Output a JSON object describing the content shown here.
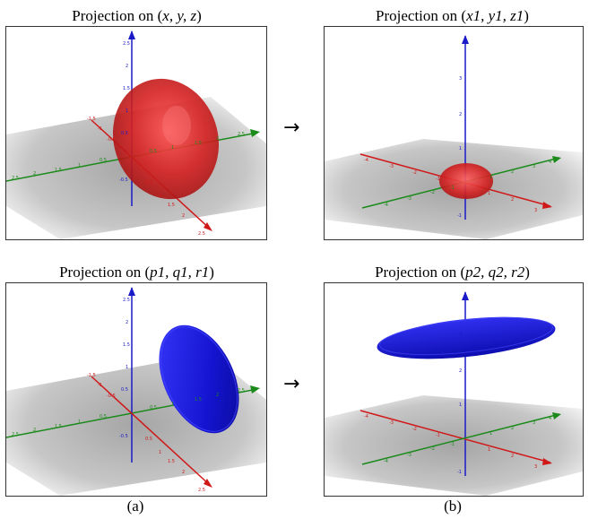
{
  "panels": {
    "tl": {
      "title_prefix": "Projection on (",
      "title_math": "x, y, z",
      "title_suffix": ")"
    },
    "tr": {
      "title_prefix": "Projection on (",
      "title_math": "x1, y1, z1",
      "title_suffix": ")"
    },
    "bl": {
      "title_prefix": "Projection on (",
      "title_math": "p1, q1, r1",
      "title_suffix": ")"
    },
    "br": {
      "title_prefix": "Projection on (",
      "title_math": "p2, q2, r2",
      "title_suffix": ")"
    }
  },
  "arrows": {
    "top": "→",
    "bottom": "→"
  },
  "captions": {
    "left": "(a)",
    "right": "(b)"
  },
  "colors": {
    "ellipsoid_red": "#d42020",
    "disk_blue": "#1414d0",
    "axis_x_red": "#d01818",
    "axis_y_green": "#1a8a1a",
    "axis_z_blue": "#1a1ac8"
  },
  "axis_ticks": {
    "left_z": [
      "2.5",
      "2",
      "1.5",
      "1",
      "0.5",
      "-0.5"
    ],
    "left_x": [
      "-1.5",
      "-1",
      "-0.5",
      "0.5",
      "1",
      "1.5",
      "2",
      "2.5"
    ],
    "left_y": [
      "2.5",
      "2",
      "1.5",
      "1",
      "0.5",
      "0.5",
      "1",
      "1.5",
      "2",
      "2.5"
    ],
    "right_z": [
      "3",
      "2",
      "1",
      "-1"
    ],
    "right_x": [
      "-4",
      "-3",
      "-2",
      "-1",
      "1",
      "2",
      "3"
    ],
    "right_y": [
      "-4",
      "-3",
      "-2",
      "-1",
      "1",
      "2",
      "3",
      "4"
    ]
  }
}
